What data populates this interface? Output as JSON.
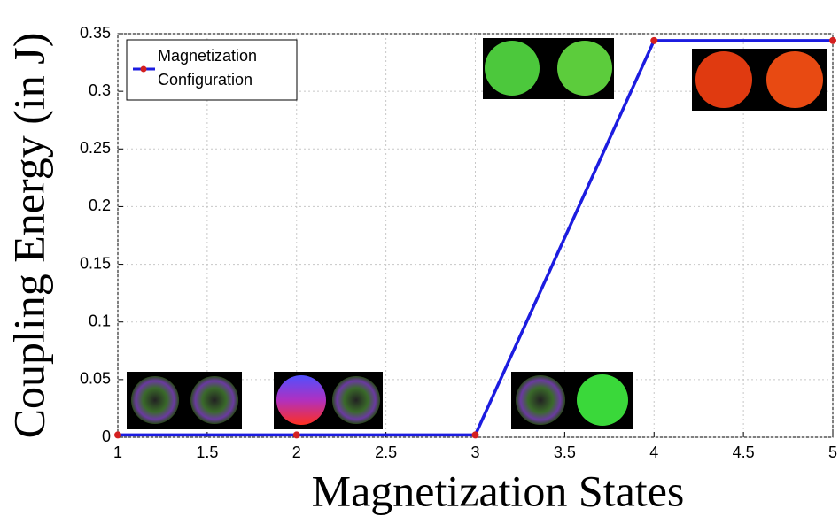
{
  "chart_data": {
    "type": "line",
    "xlabel": "Magnetization States",
    "ylabel": "Coupling Energy (in J)",
    "x": [
      1,
      2,
      3,
      4,
      5
    ],
    "series": [
      {
        "name": "Magnetization Configuration",
        "color": "#1c1ce0",
        "marker_color": "#d42020",
        "values": [
          0.002,
          0.002,
          0.002,
          0.344,
          0.344
        ]
      }
    ],
    "xlim": [
      1,
      5
    ],
    "xticks": [
      1,
      1.5,
      2,
      2.5,
      3,
      3.5,
      4,
      4.5,
      5
    ],
    "ylim": [
      0,
      0.35
    ],
    "yticks": [
      0,
      0.05,
      0.1,
      0.15,
      0.2,
      0.25,
      0.3,
      0.35
    ],
    "grid": true,
    "legend": "upper left"
  }
}
